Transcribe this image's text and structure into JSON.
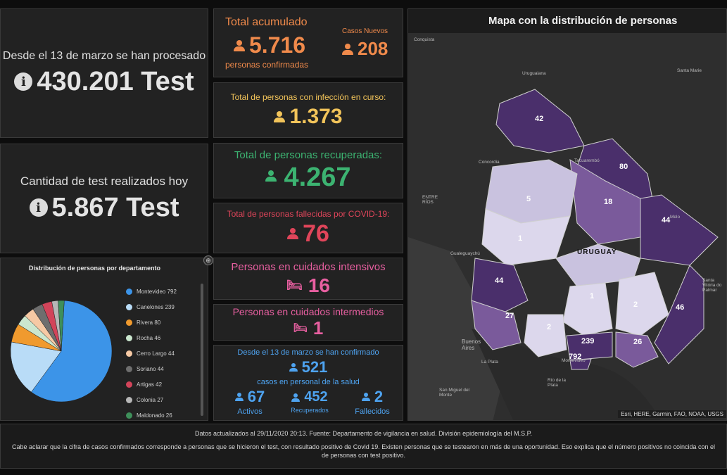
{
  "left_top": {
    "label": "Desde el 13 de marzo se han procesado",
    "value": "430.201 Test",
    "icon": "info-icon"
  },
  "left_mid": {
    "label": "Cantidad de test realizados hoy",
    "value": "5.867 Test",
    "icon": "info-icon"
  },
  "pie": {
    "title": "Distribución de personas por departamento",
    "chart_data": {
      "type": "pie",
      "title": "Distribución de personas por departamento",
      "categories": [
        "Montevideo",
        "Canelones",
        "Rivera",
        "Rocha",
        "Cerro Largo",
        "Soriano",
        "Artigas",
        "Colonia",
        "Maldonado"
      ],
      "values": [
        792,
        239,
        80,
        46,
        44,
        44,
        42,
        27,
        26
      ],
      "colors": [
        "#3c94e8",
        "#b9dcf7",
        "#f09a2e",
        "#cbe7cf",
        "#f6c9a4",
        "#6e6e6e",
        "#d2445a",
        "#b7b7b7",
        "#3e8f5a"
      ],
      "legend_labels": [
        "Montevideo 792",
        "Canelones 239",
        "Rivera 80",
        "Rocha 46",
        "Cerro Largo 44",
        "Soriano 44",
        "Artigas 42",
        "Colonia 27",
        "Maldonado 26"
      ]
    }
  },
  "acumulado": {
    "title": "Total acumulado",
    "value": "5.716",
    "subtitle": "personas confirmadas",
    "nuevos_label": "Casos Nuevos",
    "nuevos_value": "208"
  },
  "en_curso": {
    "title": "Total de personas con infección en curso:",
    "value": "1.373"
  },
  "recuperadas": {
    "title": "Total de personas recuperadas:",
    "value": "4.267"
  },
  "fallecidas": {
    "title": "Total de personas fallecidas por COVID-19:",
    "value": "76"
  },
  "intensivos": {
    "title": "Personas en cuidados intensivos",
    "value": "16"
  },
  "intermedios": {
    "title": "Personas en cuidados intermedios",
    "value": "1"
  },
  "salud": {
    "line1": "Desde el 13 de marzo se han confirmado",
    "value": "521",
    "line2": "casos en personal de la salud",
    "activos_value": "67",
    "activos_label": "Activos",
    "recuperados_value": "452",
    "recuperados_label": "Recuperados",
    "fallecidos_value": "2",
    "fallecidos_label": "Fallecidos"
  },
  "map": {
    "title": "Mapa con la distribución de personas",
    "country_label": "URUGUAY",
    "attribution": "Esri, HERE, Garmin, FAO, NOAA, USGS",
    "home_icon": "home-icon",
    "region_values": [
      "42",
      "80",
      "18",
      "5",
      "1",
      "44",
      "44",
      "1",
      "2",
      "46",
      "27",
      "2",
      "239",
      "26",
      "792"
    ],
    "places": [
      "Conquista",
      "Uruguaiana",
      "Santa Marie",
      "Concordia",
      "Tacuarembó",
      "ENTRE RÍOS",
      "Melo",
      "Gualeguaychú",
      "Santa Vitória do Palmar",
      "Buenos Aires",
      "Montevideo",
      "La Plata",
      "Río de la Plata",
      "San Miguel del Monte"
    ]
  },
  "footer": {
    "updated": "Datos actualizados al 29/11/2020 20:13. Fuente: Departamento de vigilancia en salud. División epidemiología del M.S.P.",
    "note": "Cabe aclarar que la cifra de casos confirmados corresponde a personas que se hicieron el test, con resultado positivo de Covid 19. Existen personas que se testearon en más de una oportunidad. Eso explica que el número positivos no coincida con el de personas con test positivo."
  }
}
